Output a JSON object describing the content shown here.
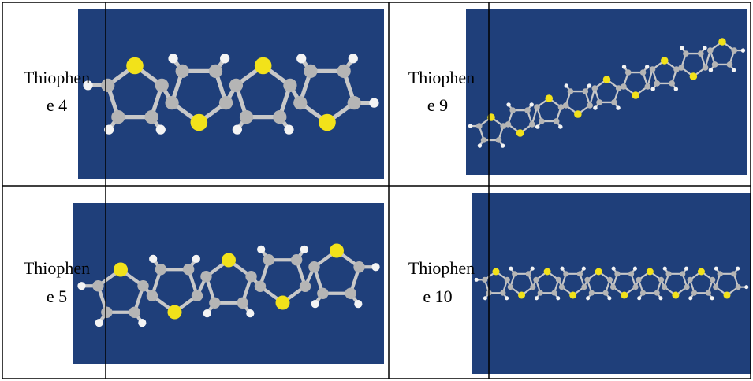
{
  "table": {
    "rows": [
      [
        {
          "label": [
            "Thiophen",
            "e 4"
          ]
        },
        {
          "label": [
            "Thiophen",
            "e 9"
          ]
        }
      ],
      [
        {
          "label": [
            "Thiophen",
            "e 5"
          ]
        },
        {
          "label": [
            "Thiophen",
            "e 10"
          ]
        }
      ]
    ]
  }
}
